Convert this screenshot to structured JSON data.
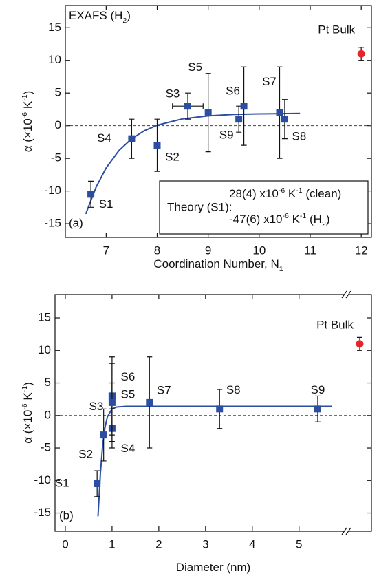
{
  "chart_data": [
    {
      "type": "scatter",
      "panel_label": "(a)",
      "title": [
        "EXAFS (H",
        "2",
        ")"
      ],
      "x_label": [
        "Coordination Number, N",
        "1"
      ],
      "y_label": [
        "α (×10",
        "-6",
        " K",
        "-1",
        ")"
      ],
      "xlim": [
        6.2,
        12.2
      ],
      "ylim": [
        -17.1,
        18.4
      ],
      "xticks": [
        7,
        8,
        9,
        10,
        11,
        12
      ],
      "yticks": [
        -15,
        -10,
        -5,
        0,
        5,
        10,
        15
      ],
      "reference_line": 0,
      "color": "#2b4ea2",
      "points": [
        {
          "label": "S1",
          "x": 6.7,
          "y": -10.5,
          "yerr": 2
        },
        {
          "label": "S4",
          "x": 7.5,
          "y": -2,
          "yerr": 3
        },
        {
          "label": "S2",
          "x": 8,
          "y": -3,
          "yerr": 4
        },
        {
          "label": "S3",
          "x": 8.6,
          "y": 3,
          "yerr": 2,
          "xerr": 0.3
        },
        {
          "label": "S5",
          "x": 9,
          "y": 2,
          "yerr": 6
        },
        {
          "label": "S9",
          "x": 9.6,
          "y": 1,
          "yerr": 2
        },
        {
          "label": "S6",
          "x": 9.7,
          "y": 3,
          "yerr": 6
        },
        {
          "label": "S7",
          "x": 10.4,
          "y": 2,
          "yerr": 7
        },
        {
          "label": "S8",
          "x": 10.5,
          "y": 1,
          "yerr": 3
        }
      ],
      "reference": {
        "label": "Pt Bulk",
        "x": 12,
        "y": 11,
        "yerr": 1,
        "color": "#e8232a"
      },
      "fit": {
        "x": [
          6.6,
          6.8,
          7.0,
          7.25,
          7.5,
          7.75,
          8.0,
          8.5,
          9.0,
          9.5,
          10.0,
          10.8
        ],
        "y": [
          -13.5,
          -9.45,
          -6.46,
          -3.81,
          -2.0,
          -0.76,
          0.08,
          1.05,
          1.5,
          1.72,
          1.81,
          1.88
        ]
      },
      "theory": {
        "label": "Theory (S1):",
        "lines": [
          [
            "28(4) x10",
            "-6",
            " K",
            "-1",
            " (clean)"
          ],
          [
            "-47(6) x10",
            "-6",
            " K",
            "-1",
            " (H",
            "2",
            ")"
          ]
        ]
      }
    },
    {
      "type": "scatter",
      "panel_label": "(b)",
      "x_label": [
        "Diameter (nm)"
      ],
      "y_label": [
        "α (×10",
        "-6",
        " K",
        "-1",
        ")"
      ],
      "xlim": [
        -0.22,
        5.96
      ],
      "ylim": [
        -17.8,
        18.6
      ],
      "xticks": [
        0,
        1,
        2,
        3,
        4,
        5
      ],
      "yticks": [
        -15,
        -10,
        -5,
        0,
        5,
        10,
        15
      ],
      "x_break": true,
      "reference_line": 0,
      "color": "#2b4ea2",
      "points": [
        {
          "label": "S1",
          "x": 0.68,
          "y": -10.5,
          "yerr": 2
        },
        {
          "label": "S2",
          "x": 0.82,
          "y": -3,
          "yerr": 4
        },
        {
          "label": "S4",
          "x": 1.0,
          "y": -2,
          "yerr": 3
        },
        {
          "label": "S3",
          "x": 1.0,
          "y": 3,
          "yerr": 2
        },
        {
          "label": "S6",
          "x": 1.0,
          "y": 3,
          "yerr": 6
        },
        {
          "label": "S5",
          "x": 1.0,
          "y": 2,
          "yerr": 6
        },
        {
          "label": "S7",
          "x": 1.8,
          "y": 2,
          "yerr": 7
        },
        {
          "label": "S8",
          "x": 3.3,
          "y": 1,
          "yerr": 3
        },
        {
          "label": "S9",
          "x": 5.4,
          "y": 1,
          "yerr": 2
        }
      ],
      "reference": {
        "label": "Pt Bulk",
        "y": 11,
        "yerr": 1,
        "color": "#e8232a"
      },
      "fit": {
        "x": [
          0.7,
          0.75,
          0.8,
          0.85,
          0.9,
          1.0,
          1.1,
          1.3,
          2.0,
          5.7
        ],
        "y": [
          -15.5,
          -9,
          -4.5,
          -1.8,
          -0.2,
          1.0,
          1.3,
          1.4,
          1.4,
          1.4
        ]
      }
    }
  ]
}
